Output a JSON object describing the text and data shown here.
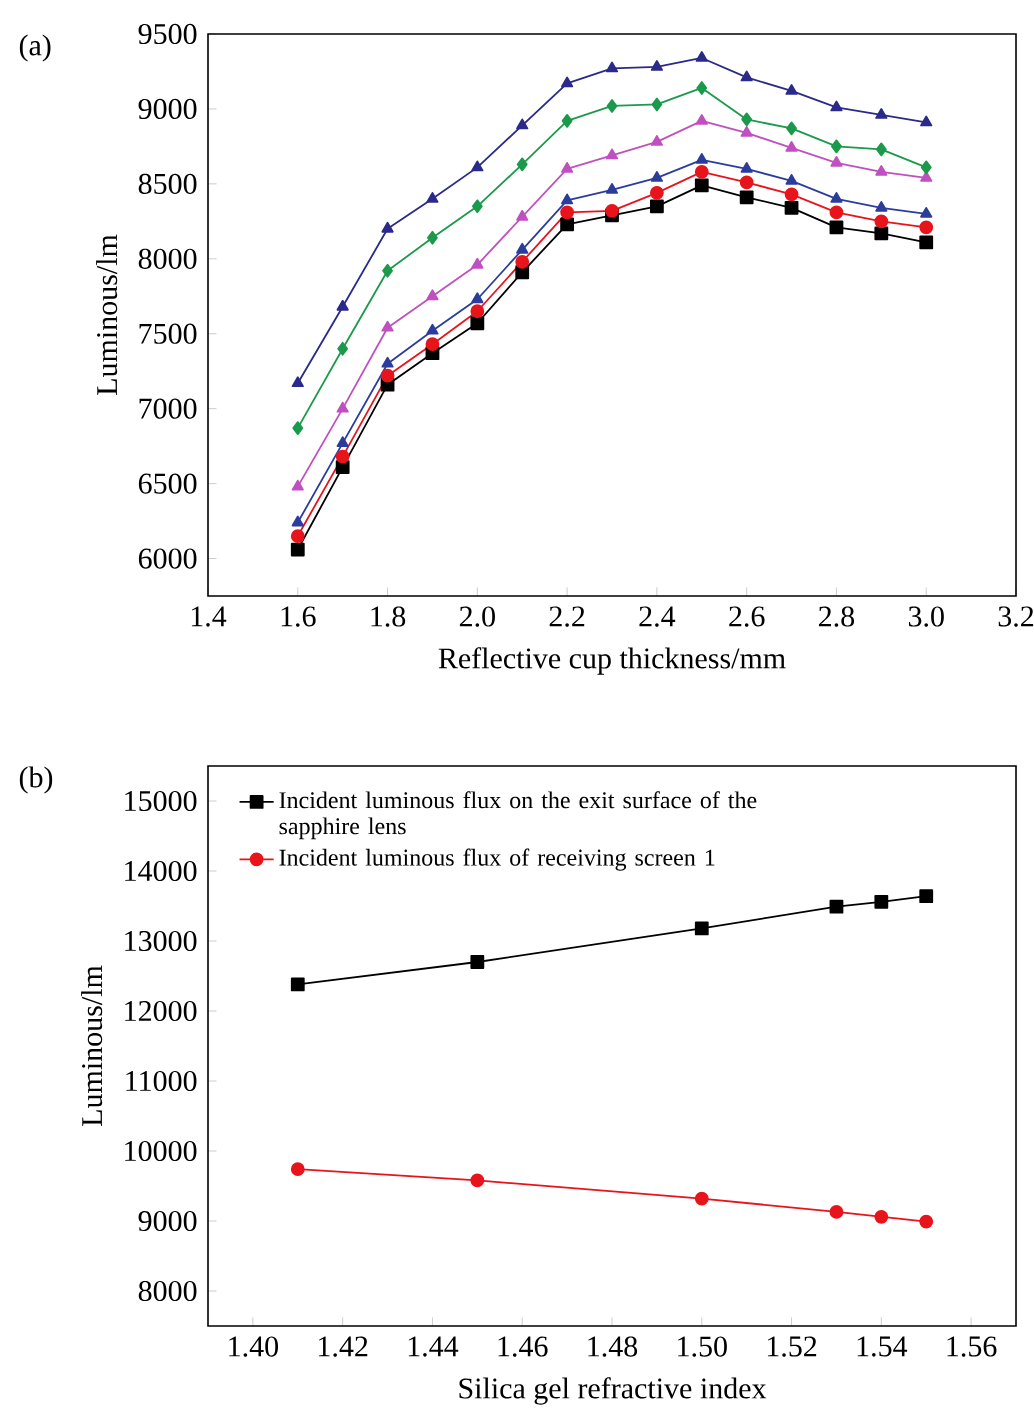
{
  "chart_data": [
    {
      "type": "line",
      "xlabel": "Reflective cup thickness/mm",
      "ylabel": "Luminous/lm",
      "annotations": [
        "(a)"
      ],
      "x": [
        1.6,
        1.7,
        1.8,
        1.9,
        2.0,
        2.1,
        2.2,
        2.3,
        2.4,
        2.5,
        2.6,
        2.7,
        2.8,
        2.9,
        3.0
      ],
      "series": [
        {
          "color": "#000000",
          "marker": "square",
          "values": [
            6060,
            6610,
            7160,
            7370,
            7570,
            7910,
            8230,
            8290,
            8350,
            8490,
            8410,
            8340,
            8210,
            8170,
            8110
          ]
        },
        {
          "color": "#e8141c",
          "marker": "circle",
          "values": [
            6150,
            6680,
            7220,
            7430,
            7650,
            7980,
            8310,
            8320,
            8440,
            8580,
            8510,
            8430,
            8310,
            8250,
            8210
          ]
        },
        {
          "color": "#2b3d9c",
          "marker": "triangle",
          "values": [
            6240,
            6770,
            7300,
            7520,
            7730,
            8060,
            8390,
            8460,
            8540,
            8660,
            8600,
            8520,
            8400,
            8340,
            8300
          ]
        },
        {
          "color": "#c050c0",
          "marker": "triangle",
          "values": [
            6480,
            7000,
            7540,
            7750,
            7960,
            8280,
            8600,
            8690,
            8780,
            8920,
            8840,
            8740,
            8640,
            8580,
            8540
          ]
        },
        {
          "color": "#1a9a4a",
          "marker": "diamond",
          "values": [
            6870,
            7400,
            7920,
            8140,
            8350,
            8630,
            8920,
            9020,
            9030,
            9140,
            8930,
            8870,
            8750,
            8730,
            8610
          ]
        },
        {
          "color": "#2a2a8a",
          "marker": "triangle",
          "values": [
            7170,
            7680,
            8200,
            8400,
            8610,
            8890,
            9170,
            9270,
            9280,
            9340,
            9210,
            9120,
            9010,
            8960,
            8910
          ]
        }
      ],
      "xlim": [
        1.4,
        3.2
      ],
      "ylim": [
        5750,
        9500
      ],
      "xticks": [
        {
          "value": 1.4,
          "label": "1.4"
        },
        {
          "value": 1.6,
          "label": "1.6"
        },
        {
          "value": 1.8,
          "label": "1.8"
        },
        {
          "value": 2,
          "label": "2.0"
        },
        {
          "value": 2.2,
          "label": "2.2"
        },
        {
          "value": 2.4,
          "label": "2.4"
        },
        {
          "value": 2.6,
          "label": "2.6"
        },
        {
          "value": 2.8,
          "label": "2.8"
        },
        {
          "value": 3,
          "label": "3.0"
        },
        {
          "value": 3.2,
          "label": "3.2"
        }
      ],
      "yticks": [
        6000,
        6500,
        7000,
        7500,
        8000,
        8500,
        9000,
        9500
      ],
      "grid": false,
      "legend": false,
      "line_style": "solid"
    },
    {
      "type": "line",
      "xlabel": "Silica gel refractive index",
      "ylabel": "Luminous/lm",
      "annotations": [
        "(b)"
      ],
      "x": [
        1.41,
        1.45,
        1.5,
        1.53,
        1.54,
        1.55
      ],
      "series": [
        {
          "name": "Incident luminous flux on the exit surface of the sapphire lens",
          "color": "#000000",
          "marker": "square",
          "values": [
            12380,
            12700,
            13180,
            13490,
            13560,
            13640
          ]
        },
        {
          "name": "Incident luminous flux of receiving screen 1",
          "color": "#e8141c",
          "marker": "circle",
          "values": [
            9740,
            9580,
            9320,
            9130,
            9060,
            8990
          ]
        }
      ],
      "xlim": [
        1.39,
        1.57
      ],
      "ylim": [
        7500,
        15500
      ],
      "xticks": [
        {
          "value": 1.4,
          "label": "1.40"
        },
        {
          "value": 1.42,
          "label": "1.42"
        },
        {
          "value": 1.44,
          "label": "1.44"
        },
        {
          "value": 1.46,
          "label": "1.46"
        },
        {
          "value": 1.48,
          "label": "1.48"
        },
        {
          "value": 1.5,
          "label": "1.50"
        },
        {
          "value": 1.52,
          "label": "1.52"
        },
        {
          "value": 1.54,
          "label": "1.54"
        },
        {
          "value": 1.56,
          "label": "1.56"
        }
      ],
      "yticks": [
        8000,
        9000,
        10000,
        11000,
        12000,
        13000,
        14000,
        15000
      ],
      "grid": false,
      "legend": "top left",
      "line_style": "solid"
    }
  ]
}
